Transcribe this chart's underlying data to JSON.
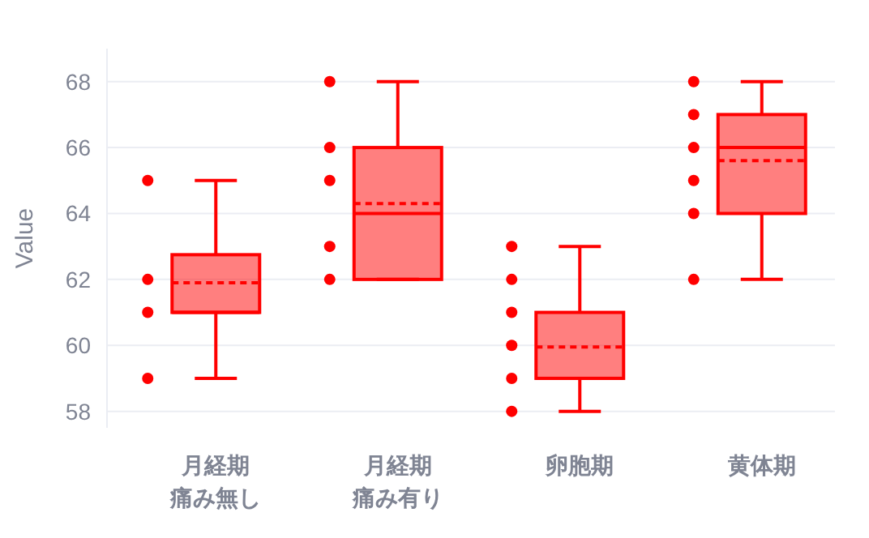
{
  "chart_data": {
    "type": "box",
    "ylabel": "Value",
    "categories": [
      "月経期痛み無し",
      "月経期痛み有り",
      "卵胞期",
      "黄体期"
    ],
    "boxes": [
      {
        "low": 59,
        "q1": 61,
        "median": 61,
        "q3": 62.75,
        "high": 65,
        "mean": 61.9
      },
      {
        "low": 62,
        "q1": 62,
        "median": 64,
        "q3": 66,
        "high": 68,
        "mean": 64.3
      },
      {
        "low": 58,
        "q1": 59,
        "median": 59,
        "q3": 61,
        "high": 63,
        "mean": 59.95
      },
      {
        "low": 62,
        "q1": 64,
        "median": 66,
        "q3": 67,
        "high": 68,
        "mean": 65.6
      }
    ],
    "color": "#ff0000",
    "series": [
      {
        "type": "scatter",
        "color": "#ff0000",
        "x": [
          "月経期痛み無し",
          "月経期痛み無し",
          "月経期痛み無し",
          "月経期痛み無し",
          "月経期痛み有り",
          "月経期痛み有り",
          "月経期痛み有り",
          "月経期痛み有り",
          "月経期痛み有り",
          "卵胞期",
          "卵胞期",
          "卵胞期",
          "卵胞期",
          "卵胞期",
          "卵胞期",
          "黄体期",
          "黄体期",
          "黄体期",
          "黄体期",
          "黄体期",
          "黄体期"
        ],
        "values": [
          65,
          62,
          61,
          59,
          68,
          66,
          65,
          63,
          62,
          63,
          62,
          61,
          60,
          59,
          58,
          68,
          67,
          66,
          65,
          64,
          62
        ]
      }
    ],
    "ylim": [
      57.5,
      69
    ],
    "yticks": [
      58,
      60,
      62,
      64,
      66,
      68
    ],
    "grid": "y"
  }
}
